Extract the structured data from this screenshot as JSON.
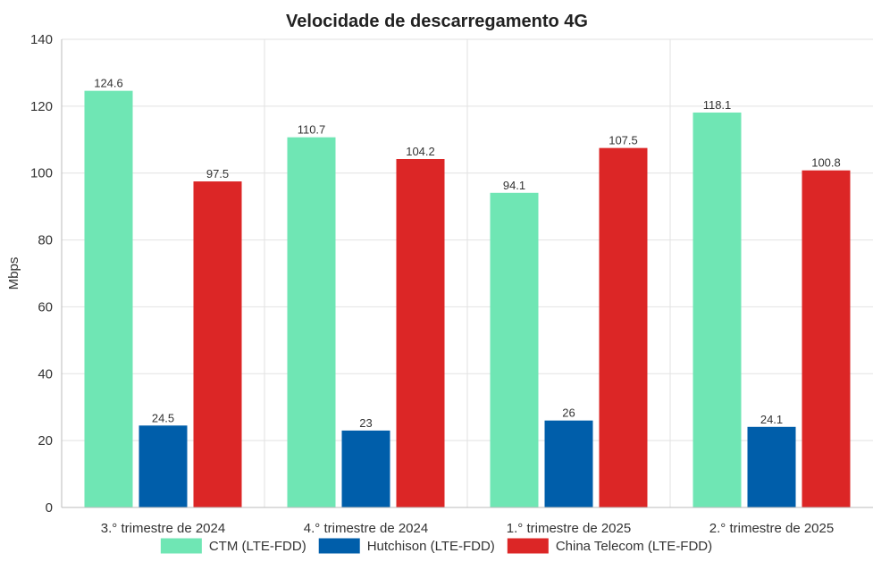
{
  "chart_data": {
    "type": "bar",
    "title": "Velocidade de descarregamento 4G",
    "ylabel": "Mbps",
    "xlabel": "",
    "ylim": [
      0,
      140
    ],
    "yticks": [
      0,
      20,
      40,
      60,
      80,
      100,
      120,
      140
    ],
    "grid": true,
    "legend_position": "bottom",
    "categories": [
      "3.°  trimestre de 2024",
      "4.°  trimestre de 2024",
      "1.°  trimestre de 2025",
      "2.°  trimestre de 2025"
    ],
    "series": [
      {
        "name": "CTM (LTE-FDD)",
        "color": "#6fe6b4",
        "values": [
          124.6,
          110.7,
          94.1,
          118.1
        ]
      },
      {
        "name": "Hutchison (LTE-FDD)",
        "color": "#005eaa",
        "values": [
          24.5,
          23,
          26,
          24.1
        ]
      },
      {
        "name": "China Telecom (LTE-FDD)",
        "color": "#dc2626",
        "values": [
          97.5,
          104.2,
          107.5,
          100.8
        ]
      }
    ]
  }
}
